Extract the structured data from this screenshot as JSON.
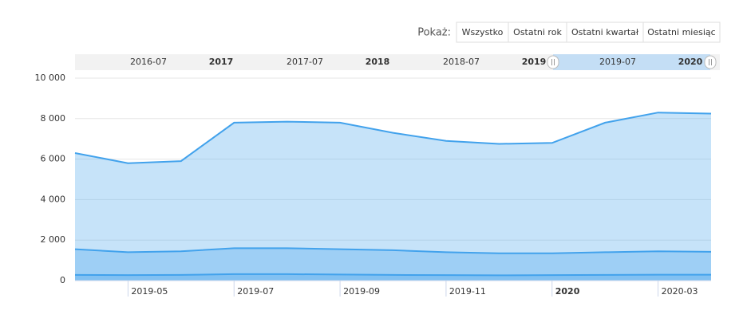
{
  "range_selector": {
    "label": "Pokaż:",
    "buttons": [
      "Wszystko",
      "Ostatni rok",
      "Ostatni kwartał",
      "Ostatni miesiąc"
    ]
  },
  "navigator": {
    "labels": [
      "2016-07",
      "2017",
      "2017-07",
      "2018",
      "2018-07",
      "2019",
      "2019-07",
      "2020"
    ]
  },
  "chart_data": {
    "type": "area",
    "x": [
      "2019-04",
      "2019-05",
      "2019-06",
      "2019-07",
      "2019-08",
      "2019-09",
      "2019-10",
      "2019-11",
      "2019-12",
      "2020-01",
      "2020-02",
      "2020-03",
      "2020-04"
    ],
    "series": [
      {
        "color": "#42a2ec",
        "values": [
          6300,
          5800,
          5900,
          7800,
          7850,
          7800,
          7300,
          6900,
          6750,
          6800,
          7800,
          8300,
          8250
        ]
      },
      {
        "color": "#42a2ec",
        "values": [
          1550,
          1400,
          1450,
          1600,
          1600,
          1550,
          1500,
          1400,
          1350,
          1350,
          1400,
          1450,
          1420
        ]
      },
      {
        "color": "#42a2ec",
        "values": [
          280,
          270,
          280,
          320,
          320,
          300,
          280,
          270,
          260,
          270,
          280,
          290,
          290
        ]
      }
    ],
    "xlim": [
      "2019-04",
      "2020-04"
    ],
    "xticks": [
      "2019-05",
      "2019-07",
      "2019-09",
      "2019-11",
      {
        "value": "2020-01",
        "label": "2020"
      },
      "2020-03"
    ],
    "ylim": [
      0,
      10000
    ],
    "yticks": [
      0,
      {
        "value": 2000,
        "label": "2 000"
      },
      {
        "value": 4000,
        "label": "4 000"
      },
      {
        "value": 6000,
        "label": "6 000"
      },
      {
        "value": 8000,
        "label": "8 000"
      },
      {
        "value": 10000,
        "label": "10 000"
      }
    ],
    "grid": true
  }
}
